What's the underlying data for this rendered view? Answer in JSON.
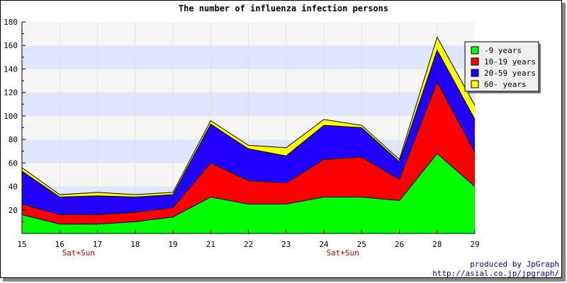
{
  "chart_data": {
    "type": "area",
    "stacked": true,
    "title": "The number of influenza infection persons",
    "categories": [
      "15",
      "16",
      "17",
      "18",
      "19",
      "21",
      "22",
      "23",
      "24",
      "25",
      "26",
      "28",
      "29"
    ],
    "weekend_labels": [
      {
        "after_category": "16",
        "text": "Sat+Sun"
      },
      {
        "after_category": "24",
        "text": "Sat+Sun"
      }
    ],
    "series": [
      {
        "name": "-9 years",
        "color": "#00ff00",
        "values": [
          16,
          8,
          8,
          10,
          14,
          31,
          25,
          25,
          31,
          31,
          28,
          68,
          40
        ]
      },
      {
        "name": "10-19 years",
        "color": "#ff0000",
        "values": [
          9,
          8,
          8,
          8,
          8,
          29,
          20,
          18,
          32,
          34,
          18,
          61,
          29
        ]
      },
      {
        "name": "20-59 years",
        "color": "#2200ff",
        "values": [
          28,
          15,
          16,
          13,
          11,
          33,
          27,
          23,
          29,
          25,
          15,
          27,
          28
        ]
      },
      {
        "name": "60- years",
        "color": "#ffff00",
        "values": [
          3,
          2,
          3,
          2,
          2,
          3,
          3,
          7,
          5,
          2,
          2,
          11,
          12
        ]
      }
    ],
    "ylim": [
      0,
      180
    ],
    "yticks": [
      20,
      40,
      60,
      80,
      100,
      120,
      140,
      160,
      180
    ],
    "grid": true,
    "legend_position": "top-right"
  },
  "footer": {
    "line1": "produced by JpGraph",
    "line2": "http://asial.co.jp/jpgraph/"
  },
  "colors": {
    "band_light": "#f5f5f5",
    "band_blue": "#dde6fd",
    "weekend_label": "#cc0000",
    "footer_text": "#0000aa"
  }
}
